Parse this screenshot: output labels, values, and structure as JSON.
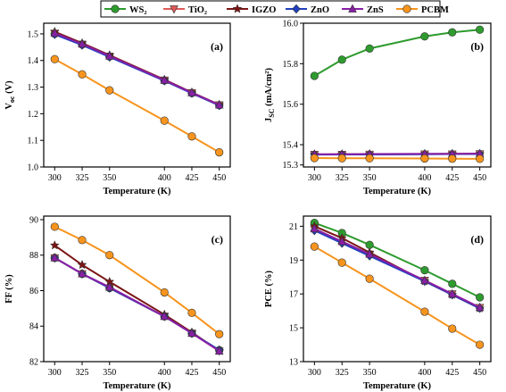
{
  "legend": [
    {
      "name": "WS₂",
      "color": "#2e9b2e",
      "marker": "circle"
    },
    {
      "name": "TiO₂",
      "color": "#e05a5a",
      "marker": "triangle-down"
    },
    {
      "name": "IGZO",
      "color": "#7a1515",
      "marker": "star"
    },
    {
      "name": "ZnO",
      "color": "#1f3fbf",
      "marker": "diamond"
    },
    {
      "name": "ZnS",
      "color": "#8a1fa6",
      "marker": "triangle-up"
    },
    {
      "name": "PCBM",
      "color": "#f7941d",
      "marker": "circle"
    }
  ],
  "chart_data": [
    {
      "type": "line",
      "panel": "(a)",
      "xlabel": "Temperature (K)",
      "ylabel": "V_oc (V)",
      "ylabel_main": "V",
      "ylabel_sub": "oc",
      "ylabel_tail": " (V)",
      "x": [
        300,
        325,
        350,
        400,
        425,
        450
      ],
      "xlim": [
        290,
        460
      ],
      "ylim": [
        1.0,
        1.54
      ],
      "yticks": [
        "1.0",
        "1.1",
        "1.2",
        "1.3",
        "1.4",
        "1.5"
      ],
      "ytick_values": [
        1.0,
        1.1,
        1.2,
        1.3,
        1.4,
        1.5
      ],
      "series": [
        {
          "name": "WS₂",
          "values": [
            1.5,
            1.46,
            1.415,
            1.325,
            1.278,
            1.232
          ]
        },
        {
          "name": "TiO₂",
          "values": [
            1.502,
            1.461,
            1.416,
            1.326,
            1.279,
            1.233
          ]
        },
        {
          "name": "IGZO",
          "values": [
            1.508,
            1.465,
            1.42,
            1.328,
            1.28,
            1.234
          ]
        },
        {
          "name": "ZnO",
          "values": [
            1.498,
            1.458,
            1.413,
            1.324,
            1.277,
            1.231
          ]
        },
        {
          "name": "ZnS",
          "values": [
            1.503,
            1.462,
            1.417,
            1.326,
            1.279,
            1.233
          ]
        },
        {
          "name": "PCBM",
          "values": [
            1.405,
            1.348,
            1.288,
            1.174,
            1.115,
            1.055
          ]
        }
      ]
    },
    {
      "type": "line",
      "panel": "(b)",
      "xlabel": "Temperature (K)",
      "ylabel": "J_sc (mA/cm²)",
      "ylabel_main": "J",
      "ylabel_sub": "SC",
      "ylabel_tail": " (mA/cm²)",
      "x": [
        300,
        325,
        350,
        400,
        425,
        450
      ],
      "xlim": [
        290,
        460
      ],
      "ylim": [
        15.29,
        16.0
      ],
      "yticks": [
        "15.3",
        "15.4",
        "15.6",
        "15.8",
        "16.0"
      ],
      "ytick_values": [
        15.3,
        15.4,
        15.6,
        15.8,
        16.0
      ],
      "series": [
        {
          "name": "WS₂",
          "values": [
            15.74,
            15.82,
            15.875,
            15.935,
            15.955,
            15.968
          ]
        },
        {
          "name": "TiO₂",
          "values": [
            15.352,
            15.352,
            15.353,
            15.354,
            15.354,
            15.355
          ]
        },
        {
          "name": "IGZO",
          "values": [
            15.352,
            15.353,
            15.353,
            15.354,
            15.355,
            15.355
          ]
        },
        {
          "name": "ZnO",
          "values": [
            15.351,
            15.352,
            15.352,
            15.353,
            15.354,
            15.354
          ]
        },
        {
          "name": "ZnS",
          "values": [
            15.353,
            15.353,
            15.354,
            15.355,
            15.355,
            15.356
          ]
        },
        {
          "name": "PCBM",
          "values": [
            15.334,
            15.333,
            15.333,
            15.332,
            15.331,
            15.33
          ]
        }
      ]
    },
    {
      "type": "line",
      "panel": "(c)",
      "xlabel": "Temperature (K)",
      "ylabel": "FF (%)",
      "x": [
        300,
        325,
        350,
        400,
        425,
        450
      ],
      "xlim": [
        290,
        460
      ],
      "ylim": [
        82,
        90.2
      ],
      "yticks": [
        "82",
        "84",
        "86",
        "88",
        "90"
      ],
      "ytick_values": [
        82,
        84,
        86,
        88,
        90
      ],
      "series": [
        {
          "name": "WS₂",
          "values": [
            87.85,
            86.95,
            86.15,
            84.55,
            83.6,
            82.65
          ]
        },
        {
          "name": "TiO₂",
          "values": [
            87.85,
            86.95,
            86.15,
            84.55,
            83.6,
            82.6
          ]
        },
        {
          "name": "IGZO",
          "values": [
            88.55,
            87.45,
            86.5,
            84.65,
            83.65,
            82.6
          ]
        },
        {
          "name": "ZnO",
          "values": [
            87.85,
            86.95,
            86.15,
            84.55,
            83.6,
            82.65
          ]
        },
        {
          "name": "ZnS",
          "values": [
            87.85,
            86.95,
            86.2,
            84.55,
            83.6,
            82.6
          ]
        },
        {
          "name": "PCBM",
          "values": [
            89.6,
            88.85,
            88.0,
            85.9,
            84.75,
            83.55
          ]
        }
      ]
    },
    {
      "type": "line",
      "panel": "(d)",
      "xlabel": "Temperature (K)",
      "ylabel": "PCE (%)",
      "x": [
        300,
        325,
        350,
        400,
        425,
        450
      ],
      "xlim": [
        290,
        460
      ],
      "ylim": [
        13,
        21.6
      ],
      "yticks": [
        "13",
        "15",
        "17",
        "19",
        "21"
      ],
      "ytick_values": [
        13,
        15,
        17,
        19,
        21
      ],
      "series": [
        {
          "name": "WS₂",
          "values": [
            21.2,
            20.6,
            19.9,
            18.4,
            17.6,
            16.8
          ]
        },
        {
          "name": "TiO₂",
          "values": [
            20.8,
            20.05,
            19.3,
            17.8,
            17.0,
            16.2
          ]
        },
        {
          "name": "IGZO",
          "values": [
            21.0,
            20.3,
            19.45,
            17.75,
            16.95,
            16.15
          ]
        },
        {
          "name": "ZnO",
          "values": [
            20.75,
            20.0,
            19.25,
            17.75,
            16.95,
            16.15
          ]
        },
        {
          "name": "ZnS",
          "values": [
            20.85,
            20.1,
            19.35,
            17.8,
            17.0,
            16.2
          ]
        },
        {
          "name": "PCBM",
          "values": [
            19.8,
            18.85,
            17.9,
            15.95,
            14.95,
            14.0
          ]
        }
      ]
    }
  ]
}
